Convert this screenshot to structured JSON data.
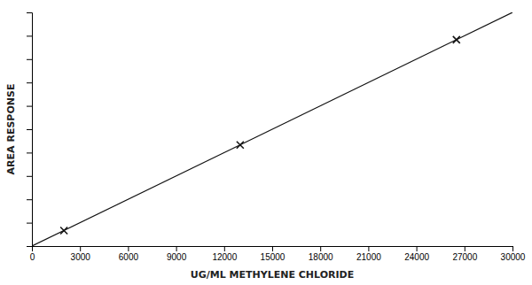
{
  "chart_data": {
    "type": "scatter",
    "xlabel": "UG/ML METHYLENE CHLORIDE",
    "ylabel": "AREA RESPONSE",
    "xlim": [
      0,
      30000
    ],
    "ylim": [
      0,
      1.0
    ],
    "xticks": [
      0,
      3000,
      6000,
      9000,
      12000,
      15000,
      18000,
      21000,
      24000,
      27000,
      30000
    ],
    "yticks": [
      0,
      0.1,
      0.2,
      0.3,
      0.4,
      0.5,
      0.6,
      0.7,
      0.8,
      0.9,
      1.0
    ],
    "tick_labels": "x",
    "series": [
      {
        "type": "line",
        "color": "#111111",
        "line_style": "solid",
        "x": [
          0,
          30000
        ],
        "values": [
          0.0,
          1.0
        ]
      },
      {
        "type": "scatter",
        "color": "#111111",
        "marker": "x",
        "x": [
          2000,
          13000,
          26500
        ],
        "values": [
          0.066,
          0.433,
          0.883
        ]
      }
    ]
  }
}
